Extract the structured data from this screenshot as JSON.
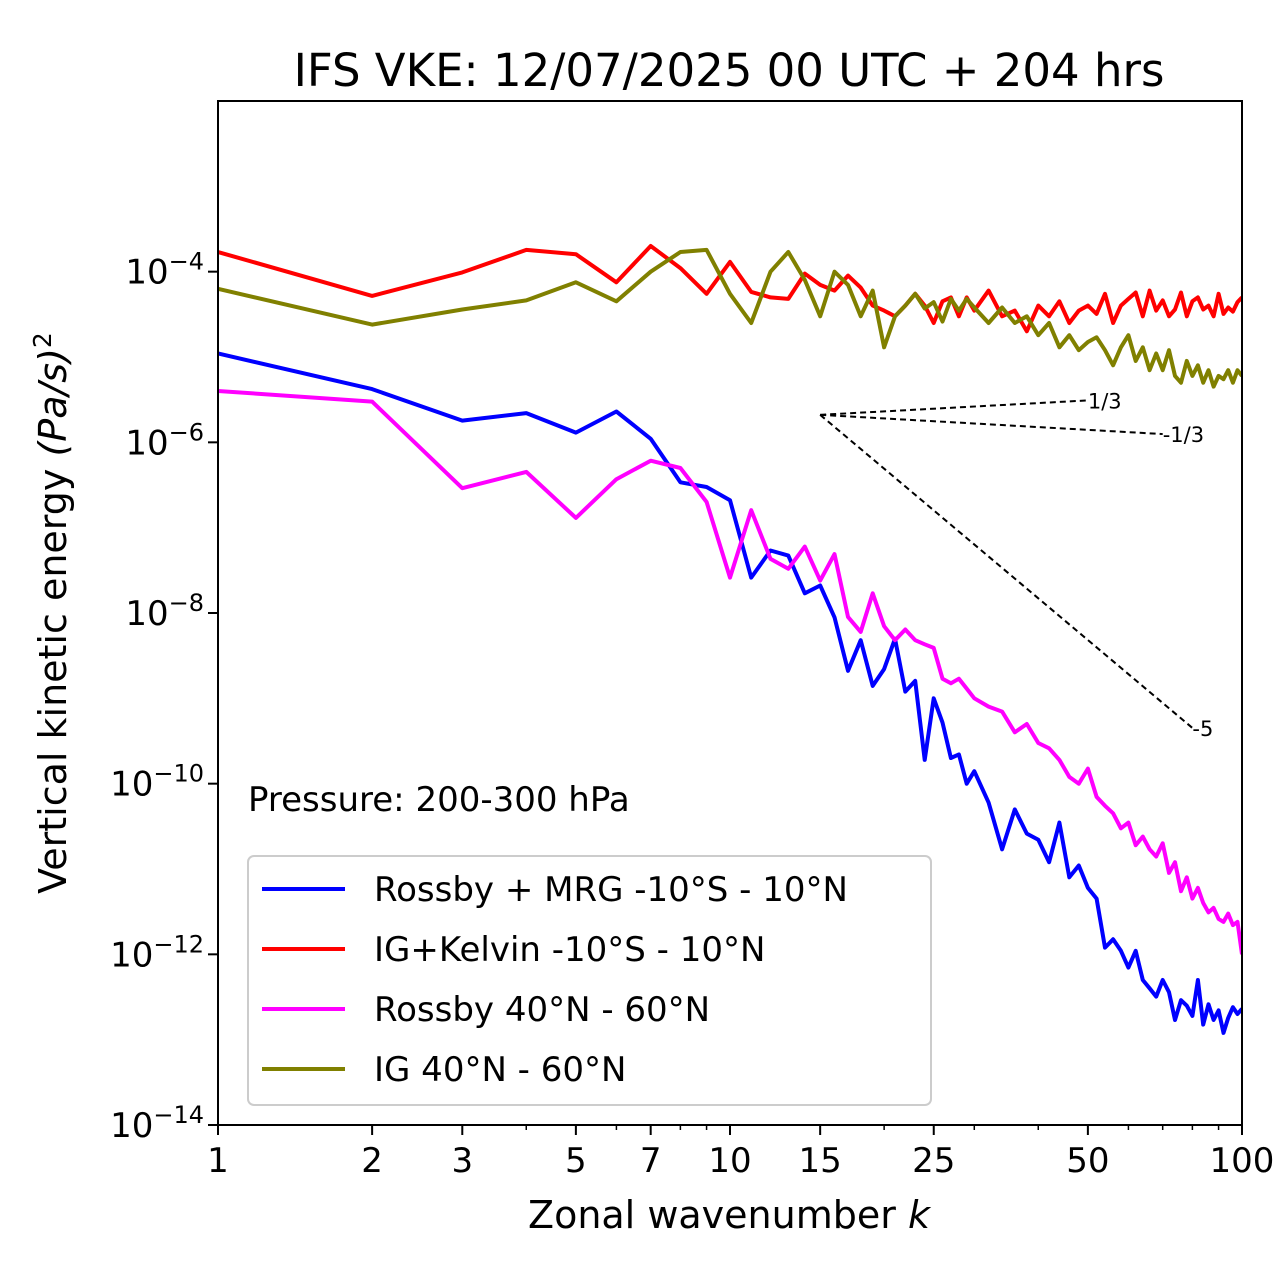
{
  "chart_data": {
    "type": "line",
    "title": "IFS VKE: 12/07/2025 00 UTC + 204 hrs",
    "xlabel": "Zonal wavenumber",
    "xlabel_var": "k",
    "ylabel": "Vertical kinetic energy",
    "ylabel_units": "(Pa/s)",
    "ylabel_sup": "2",
    "xscale": "log",
    "yscale": "log",
    "xlim": [
      1,
      100
    ],
    "ylim": [
      1e-14,
      0.01
    ],
    "x_ticks": [
      1,
      2,
      3,
      5,
      7,
      10,
      15,
      25,
      50,
      100
    ],
    "x_tick_labels": [
      "1",
      "2",
      "3",
      "5",
      "7",
      "10",
      "15",
      "25",
      "50",
      "100"
    ],
    "y_ticks": [
      1e-14,
      1e-12,
      1e-10,
      1e-08,
      1e-06,
      0.0001
    ],
    "y_tick_labels": [
      {
        "base": "10",
        "exp": "−14"
      },
      {
        "base": "10",
        "exp": "−12"
      },
      {
        "base": "10",
        "exp": "−10"
      },
      {
        "base": "10",
        "exp": "−8"
      },
      {
        "base": "10",
        "exp": "−6"
      },
      {
        "base": "10",
        "exp": "−4"
      }
    ],
    "grid": false,
    "annotation": "Pressure: 200-300 hPa",
    "legend_position": "lower-left",
    "series": [
      {
        "name": "Rossby + MRG -10°S - 10°N",
        "color": "#0000ff",
        "x": [
          1,
          2,
          3,
          4,
          5,
          6,
          7,
          8,
          9,
          10,
          11,
          12,
          13,
          14,
          15,
          16,
          17,
          18,
          19,
          20,
          21,
          22,
          23,
          24,
          25,
          26,
          27,
          28,
          29,
          30,
          32,
          34,
          36,
          38,
          40,
          42,
          44,
          46,
          48,
          50,
          52,
          54,
          56,
          58,
          60,
          62,
          64,
          66,
          68,
          70,
          72,
          74,
          76,
          78,
          80,
          82,
          84,
          86,
          88,
          90,
          92,
          94,
          96,
          98,
          100
        ],
        "values": [
          1.1e-05,
          4.2e-06,
          1.8e-06,
          2.2e-06,
          1.3e-06,
          2.3e-06,
          1.1e-06,
          3.4e-07,
          3e-07,
          2.1e-07,
          2.6e-08,
          5.4e-08,
          4.7e-08,
          1.7e-08,
          2.1e-08,
          8.9e-09,
          2.1e-09,
          4.8e-09,
          1.4e-09,
          2.2e-09,
          5e-09,
          1.2e-09,
          1.6e-09,
          1.9e-10,
          1e-09,
          5.2e-10,
          2e-10,
          2.2e-10,
          1e-10,
          1.4e-10,
          6e-11,
          1.7e-11,
          5e-11,
          2.6e-11,
          2.2e-11,
          1.2e-11,
          3.5e-11,
          8e-12,
          1.1e-11,
          6e-12,
          4.5e-12,
          1.2e-12,
          1.5e-12,
          1.1e-12,
          7e-13,
          1.1e-12,
          5e-13,
          4e-13,
          3.2e-13,
          5e-13,
          3.6e-13,
          1.7e-13,
          2.9e-13,
          2.5e-13,
          1.9e-13,
          5e-13,
          1.5e-13,
          2.6e-13,
          1.7e-13,
          2.2e-13,
          1.2e-13,
          1.8e-13,
          2.4e-13,
          2e-13,
          2.3e-13
        ]
      },
      {
        "name": "IG+Kelvin -10°S - 10°N",
        "color": "#ff0000",
        "x": [
          1,
          2,
          3,
          4,
          5,
          6,
          7,
          8,
          9,
          10,
          11,
          12,
          13,
          14,
          15,
          16,
          17,
          18,
          19,
          20,
          21,
          22,
          23,
          24,
          25,
          26,
          27,
          28,
          29,
          30,
          32,
          34,
          36,
          38,
          40,
          42,
          44,
          46,
          48,
          50,
          52,
          54,
          56,
          58,
          60,
          62,
          64,
          66,
          68,
          70,
          72,
          74,
          76,
          78,
          80,
          82,
          84,
          86,
          88,
          90,
          92,
          94,
          96,
          98,
          100
        ],
        "values": [
          0.00017,
          5.2e-05,
          9.8e-05,
          0.00018,
          0.00016,
          7.5e-05,
          0.0002,
          0.00011,
          5.5e-05,
          0.00013,
          5.8e-05,
          5e-05,
          4.8e-05,
          9.5e-05,
          7e-05,
          6e-05,
          9e-05,
          6.5e-05,
          4e-05,
          3.5e-05,
          3e-05,
          4e-05,
          5.5e-05,
          4e-05,
          2.5e-05,
          4.5e-05,
          5e-05,
          3e-05,
          5e-05,
          3.5e-05,
          6e-05,
          3e-05,
          3.5e-05,
          2e-05,
          4e-05,
          3e-05,
          4.5e-05,
          2.5e-05,
          3.5e-05,
          4e-05,
          3.2e-05,
          5.5e-05,
          2.5e-05,
          4e-05,
          4.8e-05,
          5.7e-05,
          3e-05,
          6e-05,
          3.5e-05,
          4.6e-05,
          3e-05,
          3.6e-05,
          5.7e-05,
          3e-05,
          4.5e-05,
          5e-05,
          3.6e-05,
          4e-05,
          3e-05,
          5.5e-05,
          3.2e-05,
          3.8e-05,
          3.4e-05,
          4.4e-05,
          5e-05
        ]
      },
      {
        "name": "Rossby 40°N - 60°N",
        "color": "#ff00ff",
        "x": [
          1,
          2,
          3,
          4,
          5,
          6,
          7,
          8,
          9,
          10,
          11,
          12,
          13,
          14,
          15,
          16,
          17,
          18,
          19,
          20,
          21,
          22,
          23,
          24,
          25,
          26,
          27,
          28,
          29,
          30,
          32,
          34,
          36,
          38,
          40,
          42,
          44,
          46,
          48,
          50,
          52,
          54,
          56,
          58,
          60,
          62,
          64,
          66,
          68,
          70,
          72,
          74,
          76,
          78,
          80,
          82,
          84,
          86,
          88,
          90,
          92,
          94,
          96,
          98,
          100
        ],
        "values": [
          4e-06,
          3e-06,
          2.9e-07,
          4.5e-07,
          1.3e-07,
          3.7e-07,
          6.1e-07,
          5e-07,
          2e-07,
          2.6e-08,
          1.6e-07,
          4.3e-08,
          3.3e-08,
          6e-08,
          2.4e-08,
          4.9e-08,
          9e-09,
          6e-09,
          1.7e-08,
          7e-09,
          4.8e-09,
          6.4e-09,
          4.8e-09,
          4.3e-09,
          3.9e-09,
          1.7e-09,
          1.5e-09,
          1.7e-09,
          1.3e-09,
          1e-09,
          8e-10,
          7e-10,
          4e-10,
          5e-10,
          3e-10,
          2.6e-10,
          1.9e-10,
          1.2e-10,
          1e-10,
          1.5e-10,
          7e-11,
          5.5e-11,
          4.5e-11,
          3e-11,
          3.5e-11,
          1.9e-11,
          2.4e-11,
          1.7e-11,
          1.4e-11,
          2e-11,
          9e-12,
          1.2e-11,
          5.5e-12,
          8e-12,
          4.5e-12,
          6e-12,
          4e-12,
          3.1e-12,
          3.5e-12,
          2.6e-12,
          2.4e-12,
          3e-12,
          2.2e-12,
          2.4e-12,
          1e-12
        ]
      },
      {
        "name": "IG 40°N - 60°N",
        "color": "#808000",
        "x": [
          1,
          2,
          3,
          4,
          5,
          6,
          7,
          8,
          9,
          10,
          11,
          12,
          13,
          14,
          15,
          16,
          17,
          18,
          19,
          20,
          21,
          22,
          23,
          24,
          25,
          26,
          27,
          28,
          29,
          30,
          32,
          34,
          36,
          38,
          40,
          42,
          44,
          46,
          48,
          50,
          52,
          54,
          56,
          58,
          60,
          62,
          64,
          66,
          68,
          70,
          72,
          74,
          76,
          78,
          80,
          82,
          84,
          86,
          88,
          90,
          92,
          94,
          96,
          98,
          100
        ],
        "values": [
          6.3e-05,
          2.4e-05,
          3.6e-05,
          4.6e-05,
          7.5e-05,
          4.5e-05,
          0.0001,
          0.00017,
          0.00018,
          5.5e-05,
          2.5e-05,
          0.0001,
          0.00017,
          8e-05,
          3e-05,
          0.0001,
          7e-05,
          3e-05,
          6e-05,
          1.3e-05,
          3e-05,
          4e-05,
          5.5e-05,
          3.7e-05,
          4.4e-05,
          2.6e-05,
          4.8e-05,
          3.5e-05,
          4.8e-05,
          3.8e-05,
          2.5e-05,
          3.8e-05,
          2.5e-05,
          3e-05,
          1.8e-05,
          2.5e-05,
          1.3e-05,
          1.8e-05,
          1.2e-05,
          1.5e-05,
          1.7e-05,
          1.2e-05,
          8e-06,
          1.3e-05,
          1.8e-05,
          9e-06,
          1.3e-05,
          7e-06,
          1.1e-05,
          7e-06,
          1.2e-05,
          6e-06,
          5e-06,
          9e-06,
          6e-06,
          8e-06,
          5e-06,
          7e-06,
          4.5e-06,
          6e-06,
          5.5e-06,
          7e-06,
          5e-06,
          7e-06,
          6e-06
        ]
      }
    ],
    "reference_slopes": [
      {
        "label": "1/3",
        "x0": 15,
        "y0": 2.1e-06,
        "x1": 50,
        "y1": 3.1e-06
      },
      {
        "label": "-1/3",
        "x0": 15,
        "y0": 2.1e-06,
        "x1": 70,
        "y1": 1.25e-06
      },
      {
        "label": "-5",
        "x0": 15,
        "y0": 2.1e-06,
        "x1": 80,
        "y1": 4.5e-10
      }
    ]
  }
}
